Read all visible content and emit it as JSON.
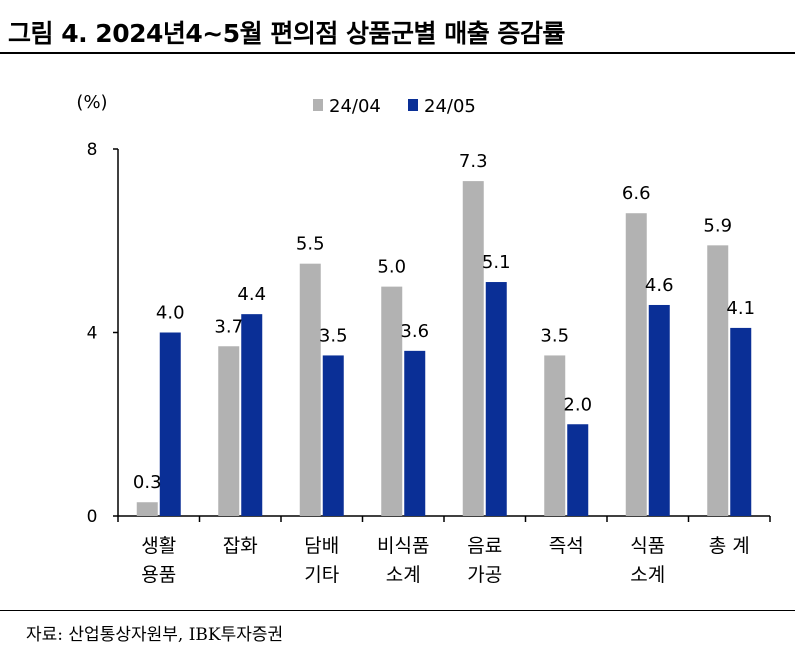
{
  "figure": {
    "title": "그림 4. 2024년4~5월 편의점 상품군별 매출 증감률",
    "source": "자료: 산업통상자원부, IBK투자증권"
  },
  "colors": {
    "series_1": "#b2b2b2",
    "series_2": "#0a2f96",
    "axis": "#000000"
  },
  "chart_data": {
    "type": "bar",
    "title": "2024년4~5월 편의점 상품군별 매출 증감률",
    "ylabel": "(%)",
    "xlabel": "",
    "ylim": [
      0,
      8
    ],
    "yticks": [
      0,
      4,
      8
    ],
    "grid": false,
    "legend_position": "top-center",
    "categories": [
      [
        "생활",
        "용품"
      ],
      [
        "잡화"
      ],
      [
        "담배",
        "기타"
      ],
      [
        "비식품",
        "소계"
      ],
      [
        "음료",
        "가공"
      ],
      [
        "즉석"
      ],
      [
        "식품",
        "소계"
      ],
      [
        "총 계"
      ]
    ],
    "series": [
      {
        "name": "24/04",
        "values": [
          0.3,
          3.7,
          5.5,
          5.0,
          7.3,
          3.5,
          6.6,
          5.9
        ]
      },
      {
        "name": "24/05",
        "values": [
          4.0,
          4.4,
          3.5,
          3.6,
          5.1,
          2.0,
          4.6,
          4.1
        ]
      }
    ]
  }
}
